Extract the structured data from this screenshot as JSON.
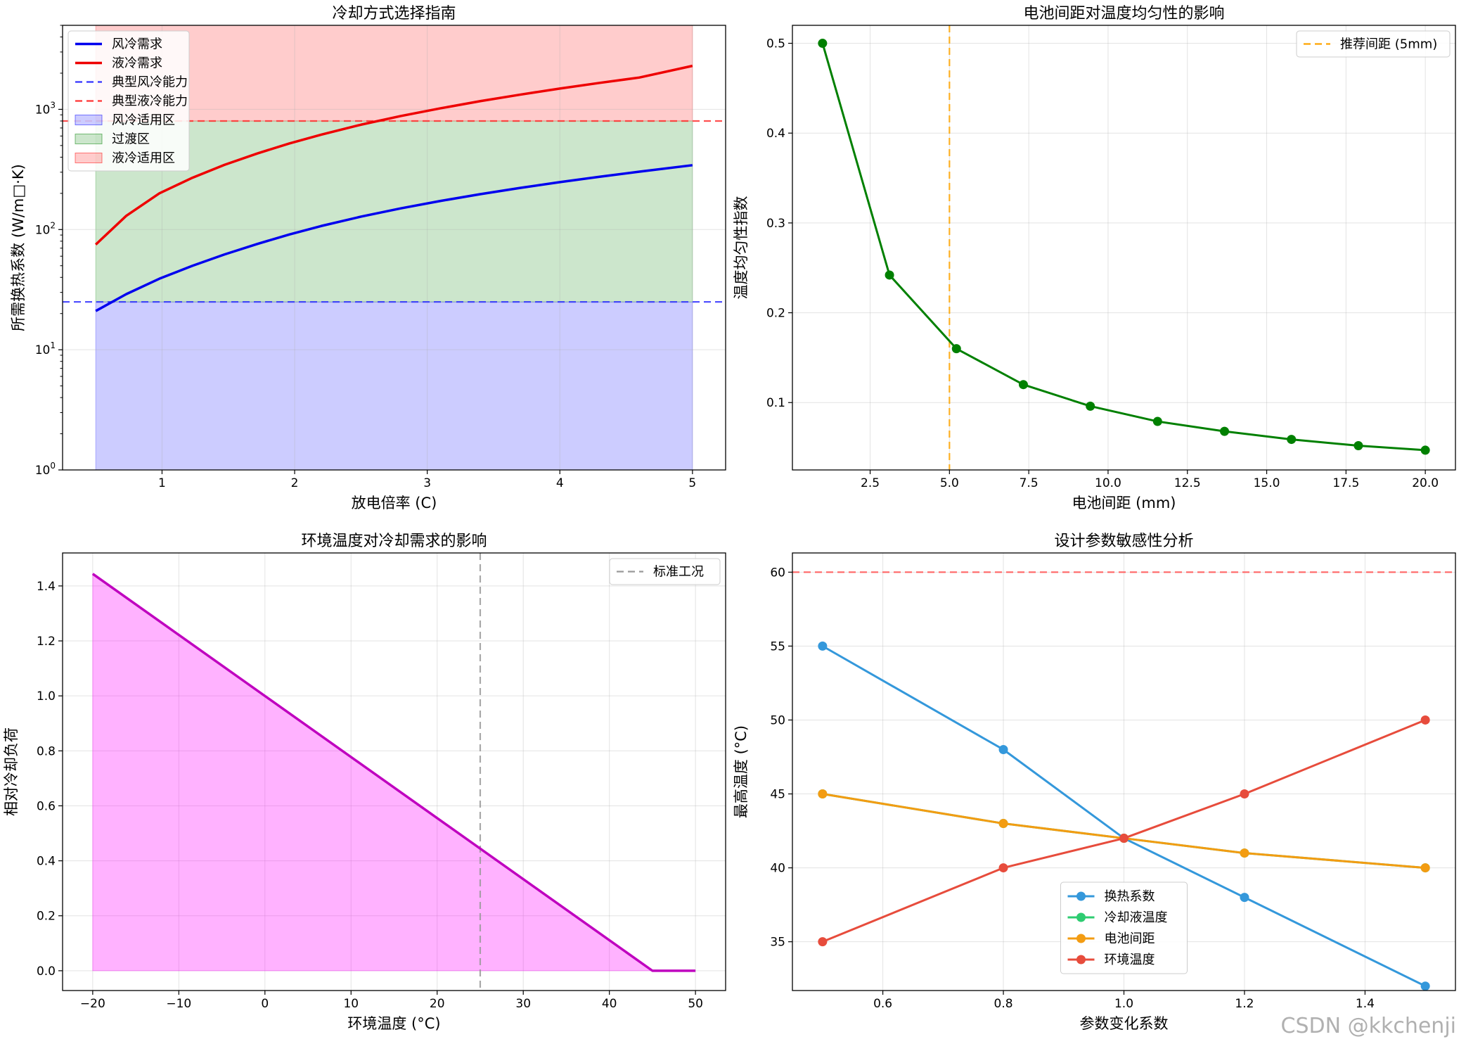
{
  "watermark": "CSDN @kkchenji",
  "chart_data": [
    {
      "id": "cooling",
      "type": "line",
      "title": "冷却方式选择指南",
      "xlabel": "放电倍率 (C)",
      "ylabel": "所需换热系数 (W/m□·K)",
      "xscale": "linear",
      "yscale": "log",
      "xlim": [
        0.25,
        5.25
      ],
      "ylim": [
        1,
        5000
      ],
      "xticks": [
        1,
        2,
        3,
        4,
        5
      ],
      "xtick_labels": [
        "1",
        "2",
        "3",
        "4",
        "5"
      ],
      "yticks": [
        1,
        10,
        100,
        1000
      ],
      "ytick_labels": [
        "10^0",
        "10^1",
        "10^2",
        "10^3"
      ],
      "grid": true,
      "legend_position": "upper-left",
      "series": [
        {
          "name": "风冷需求",
          "color": "#0000ee",
          "style": "solid",
          "width": 3.5,
          "x": [
            0.5,
            0.73,
            0.98,
            1.23,
            1.47,
            1.72,
            1.96,
            2.2,
            2.5,
            2.8,
            3.1,
            3.4,
            3.7,
            4.0,
            4.3,
            4.6,
            5.0
          ],
          "y": [
            21,
            29,
            39,
            50,
            62,
            76,
            91,
            107,
            128,
            150,
            173,
            197,
            222,
            248,
            275,
            303,
            343
          ]
        },
        {
          "name": "液冷需求",
          "color": "#ee0000",
          "style": "solid",
          "width": 3.5,
          "x": [
            0.5,
            0.73,
            0.98,
            1.23,
            1.47,
            1.72,
            1.96,
            2.2,
            2.5,
            2.8,
            3.1,
            3.4,
            3.7,
            4.0,
            4.3,
            4.6,
            5.0
          ],
          "y": [
            75,
            130,
            200,
            270,
            345,
            430,
            520,
            615,
            745,
            880,
            1020,
            1170,
            1325,
            1490,
            1660,
            1840,
            2300
          ]
        },
        {
          "name": "典型风冷能力",
          "color": "#3333ff",
          "style": "dashed",
          "width": 2.2,
          "y_constant": 25
        },
        {
          "name": "典型液冷能力",
          "color": "#ff3333",
          "style": "dashed",
          "width": 2.2,
          "y_constant": 800
        }
      ],
      "bands": [
        {
          "name": "风冷适用区",
          "color": "#0000ff",
          "alpha": 0.2,
          "x": [
            0.5,
            5
          ],
          "y": [
            1,
            25
          ]
        },
        {
          "name": "过渡区",
          "color": "#008000",
          "alpha": 0.2,
          "x": [
            0.5,
            5
          ],
          "y": [
            25,
            800
          ]
        },
        {
          "name": "液冷适用区",
          "color": "#ff0000",
          "alpha": 0.2,
          "x": [
            0.5,
            5
          ],
          "y": [
            800,
            5000
          ]
        }
      ]
    },
    {
      "id": "spacing",
      "type": "line",
      "title": "电池间距对温度均匀性的影响",
      "xlabel": "电池间距 (mm)",
      "ylabel": "温度均匀性指数",
      "xlim": [
        0.05,
        20.95
      ],
      "ylim": [
        0.025,
        0.52
      ],
      "xticks": [
        2.5,
        5,
        7.5,
        10,
        12.5,
        15,
        17.5,
        20
      ],
      "xtick_labels": [
        "2.5",
        "5.0",
        "7.5",
        "10.0",
        "12.5",
        "15.0",
        "17.5",
        "20.0"
      ],
      "yticks": [
        0.1,
        0.2,
        0.3,
        0.4,
        0.5
      ],
      "ytick_labels": [
        "0.1",
        "0.2",
        "0.3",
        "0.4",
        "0.5"
      ],
      "grid": true,
      "legend_position": "upper-right",
      "series": [
        {
          "name": "",
          "color": "#008000",
          "style": "solid",
          "width": 3,
          "marker": true,
          "x": [
            1,
            3.11,
            5.22,
            7.33,
            9.44,
            11.56,
            13.67,
            15.78,
            17.89,
            20
          ],
          "y": [
            0.5,
            0.242,
            0.16,
            0.12,
            0.096,
            0.079,
            0.068,
            0.059,
            0.052,
            0.047
          ]
        }
      ],
      "vlines": [
        {
          "name": "推荐间距 (5mm)",
          "color": "#ffa500",
          "style": "dashed",
          "width": 2.2,
          "x": 5
        }
      ]
    },
    {
      "id": "ambient",
      "type": "area",
      "title": "环境温度对冷却需求的影响",
      "xlabel": "环境温度 (°C)",
      "ylabel": "相对冷却负荷",
      "xlim": [
        -23.5,
        53.5
      ],
      "ylim": [
        -0.072,
        1.52
      ],
      "xticks": [
        -20,
        -10,
        0,
        10,
        20,
        30,
        40,
        50
      ],
      "xtick_labels": [
        "−20",
        "−10",
        "0",
        "10",
        "20",
        "30",
        "40",
        "50"
      ],
      "yticks": [
        0,
        0.2,
        0.4,
        0.6,
        0.8,
        1.0,
        1.2,
        1.4
      ],
      "ytick_labels": [
        "0.0",
        "0.2",
        "0.4",
        "0.6",
        "0.8",
        "1.0",
        "1.2",
        "1.4"
      ],
      "grid": true,
      "legend_position": "upper-right",
      "series": [
        {
          "name": "",
          "color": "#bf00bf",
          "style": "solid",
          "width": 3.5,
          "fill": "#ff00ff",
          "fill_alpha": 0.3,
          "x": [
            -20,
            45,
            50
          ],
          "y": [
            1.444,
            0,
            0
          ]
        }
      ],
      "vlines": [
        {
          "name": "标准工况",
          "color": "#999999",
          "style": "dashed",
          "width": 2.2,
          "x": 25
        }
      ]
    },
    {
      "id": "sensitivity",
      "type": "line",
      "title": "设计参数敏感性分析",
      "xlabel": "参数变化系数",
      "ylabel": "最高温度 (°C)",
      "xlim": [
        0.45,
        1.55
      ],
      "ylim": [
        31.7,
        61.3
      ],
      "xticks": [
        0.6,
        0.8,
        1.0,
        1.2,
        1.4
      ],
      "xtick_labels": [
        "0.6",
        "0.8",
        "1.0",
        "1.2",
        "1.4"
      ],
      "yticks": [
        35,
        40,
        45,
        50,
        55,
        60
      ],
      "ytick_labels": [
        "35",
        "40",
        "45",
        "50",
        "55",
        "60"
      ],
      "grid": true,
      "legend_position": "lower-center",
      "series": [
        {
          "name": "换热系数",
          "color": "#3498db",
          "style": "solid",
          "width": 3,
          "marker": true,
          "x": [
            0.5,
            0.8,
            1.0,
            1.2,
            1.5
          ],
          "y": [
            55,
            48,
            42,
            38,
            32
          ]
        },
        {
          "name": "冷却液温度",
          "color": "#2ecc71",
          "style": "solid",
          "width": 3,
          "marker": true,
          "x": [
            0.5,
            0.8,
            1.0,
            1.2,
            1.5
          ],
          "y": [
            45,
            43,
            42,
            41,
            40
          ]
        },
        {
          "name": "电池间距",
          "color": "#f39c12",
          "style": "solid",
          "width": 3,
          "marker": true,
          "x": [
            0.5,
            0.8,
            1.0,
            1.2,
            1.5
          ],
          "y": [
            45,
            43,
            42,
            41,
            40
          ]
        },
        {
          "name": "环境温度",
          "color": "#e74c3c",
          "style": "solid",
          "width": 3,
          "marker": true,
          "x": [
            0.5,
            0.8,
            1.0,
            1.2,
            1.5
          ],
          "y": [
            35,
            40,
            42,
            45,
            50
          ]
        }
      ],
      "hlines": [
        {
          "name": "",
          "color": "#ff6666",
          "style": "dashed",
          "width": 2.2,
          "y": 60
        }
      ]
    }
  ]
}
